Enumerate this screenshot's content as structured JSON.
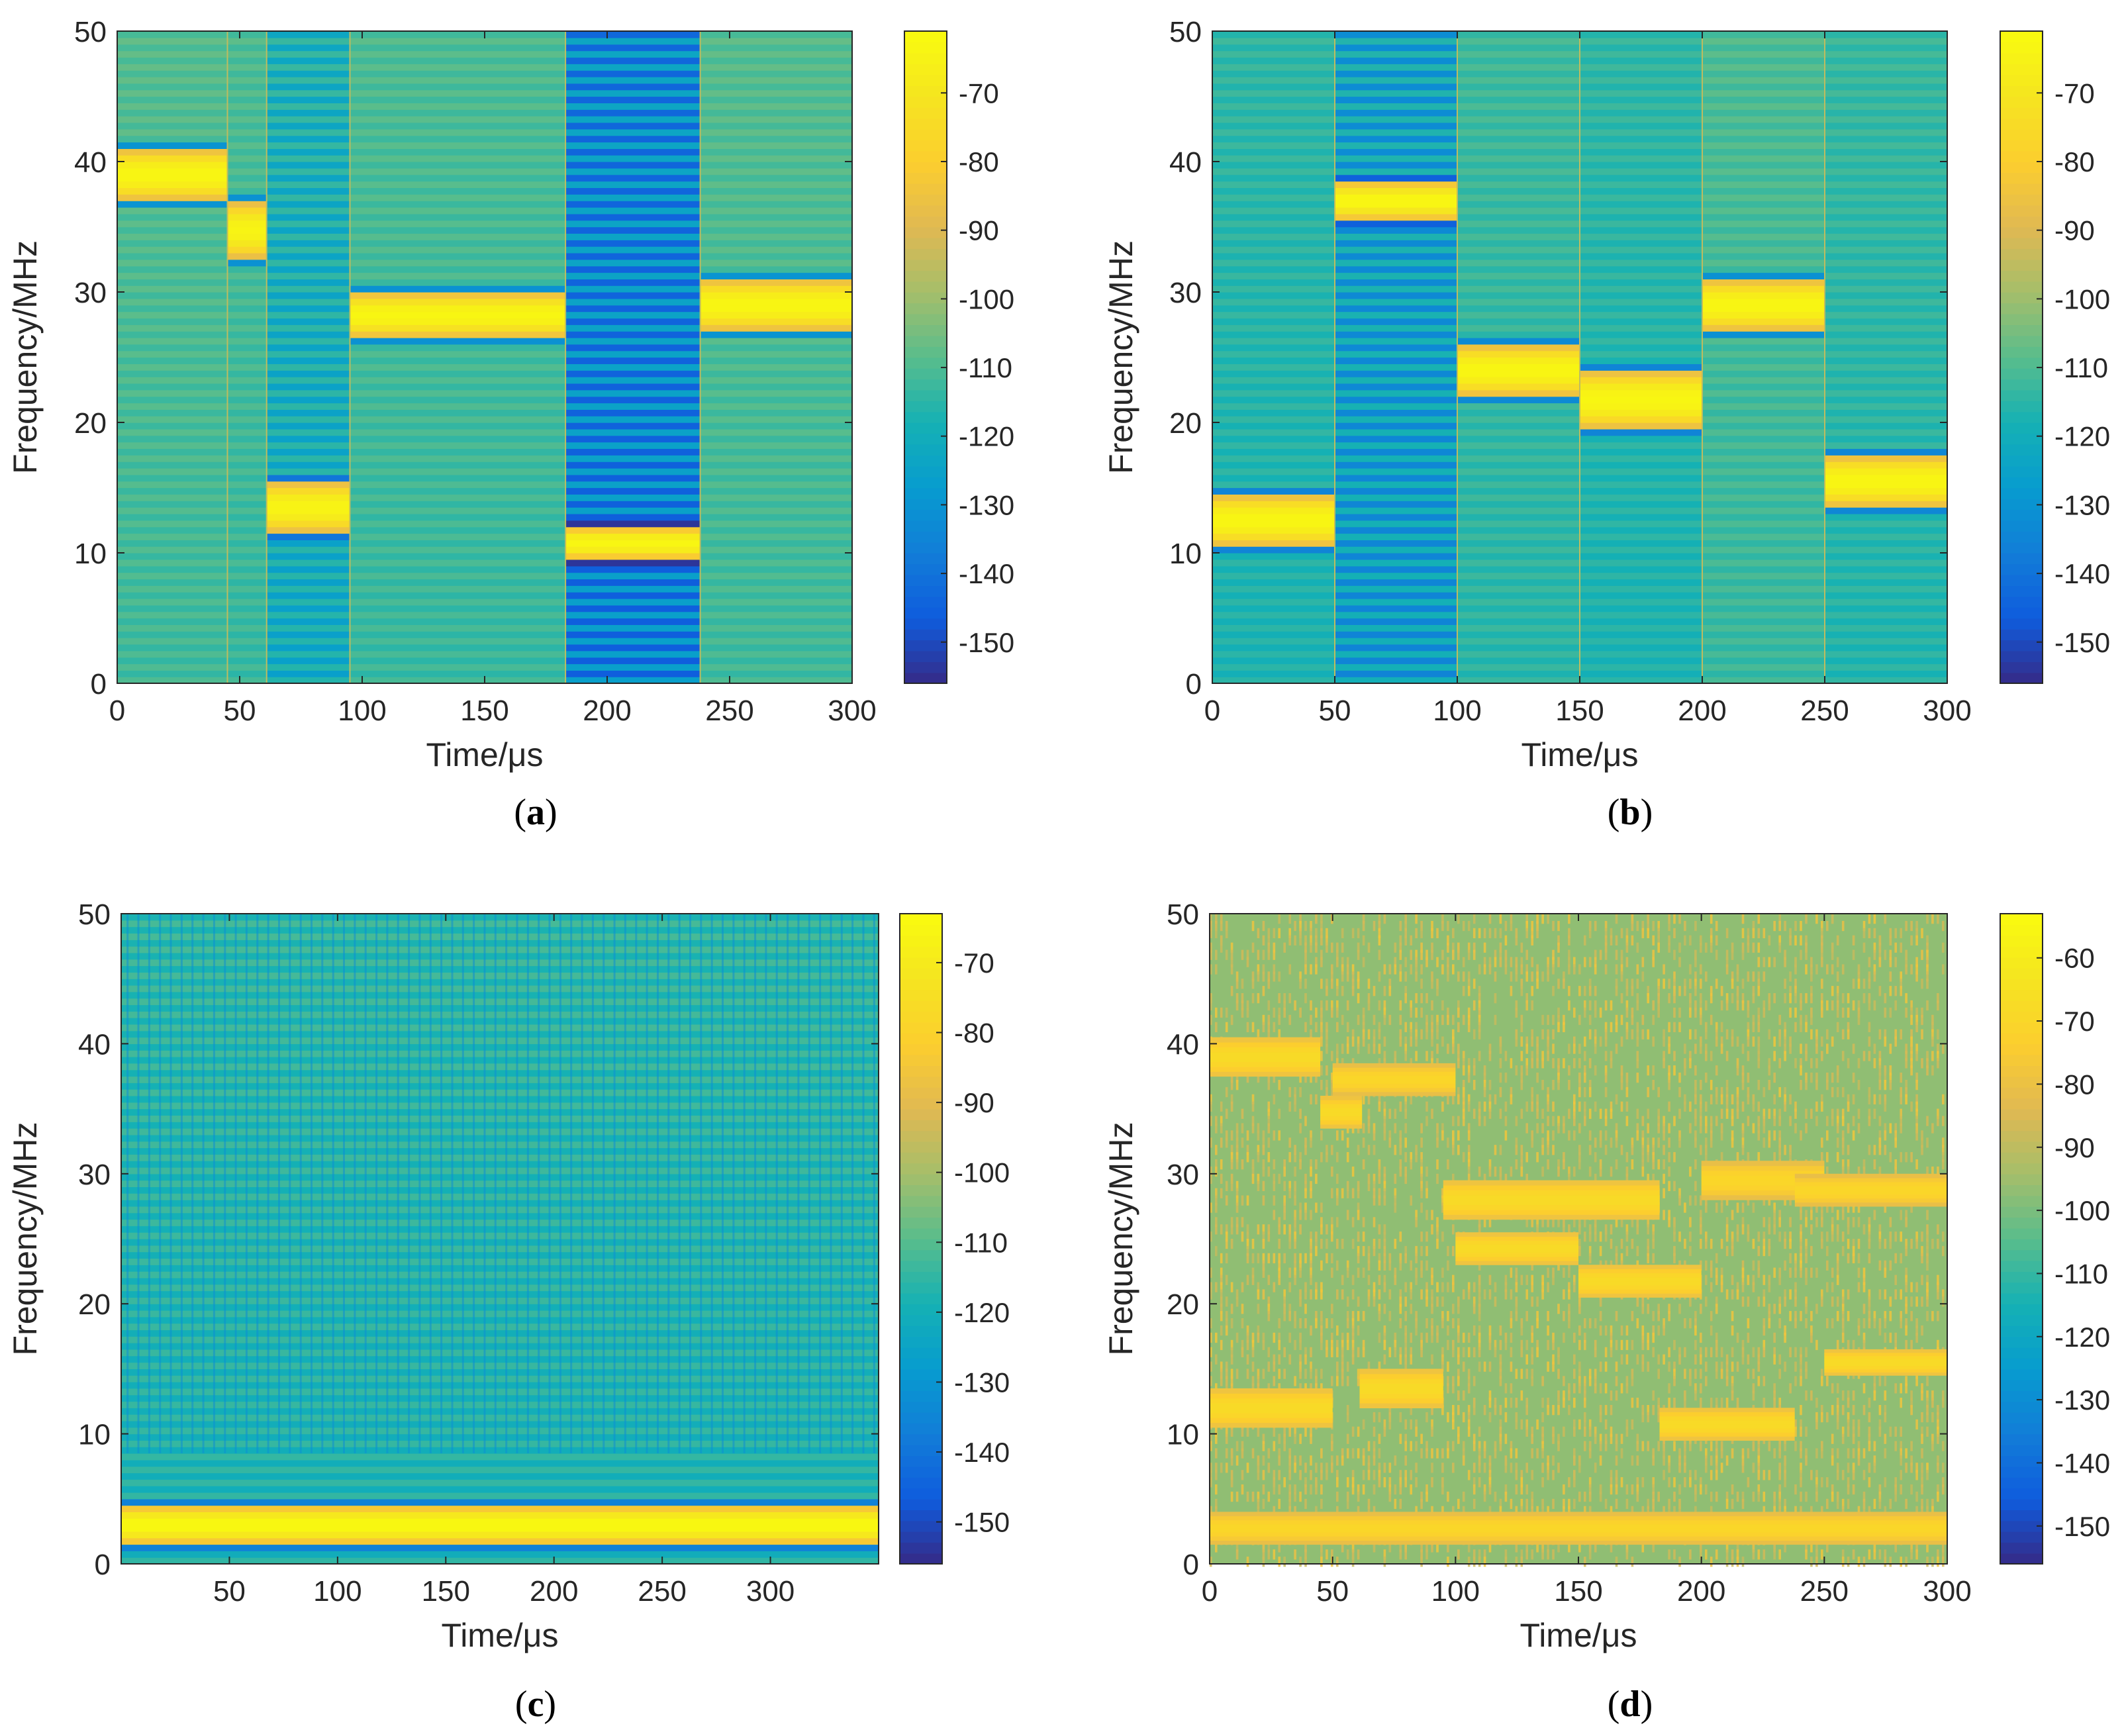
{
  "chart_data": [
    {
      "type": "heatmap",
      "panel_label": "(a)",
      "caption": {
        "open": "(",
        "letter": "a",
        "close": ")"
      },
      "xlabel": "Time/μs",
      "ylabel": "Frequency/MHz",
      "xlim": [
        0,
        300
      ],
      "ylim": [
        0,
        50
      ],
      "xticks": [
        0,
        50,
        100,
        150,
        200,
        250,
        300
      ],
      "yticks": [
        0,
        10,
        20,
        30,
        40,
        50
      ],
      "colorbar": {
        "range": [
          -156,
          -61
        ],
        "ticks": [
          -70,
          -80,
          -90,
          -100,
          -110,
          -120,
          -130,
          -140,
          -150
        ],
        "colormap": "parula"
      },
      "background_db": -112,
      "segments": [
        {
          "t0": 0,
          "t1": 45,
          "bg_db": -112,
          "f_low": 37,
          "f_high": 41,
          "peak_db": -63,
          "stripe": 0
        },
        {
          "t0": 45,
          "t1": 61,
          "bg_db": -113,
          "f_low": 32.5,
          "f_high": 37,
          "peak_db": -64,
          "stripe": 0
        },
        {
          "t0": 61,
          "t1": 95,
          "bg_db": -121,
          "f_low": 11.5,
          "f_high": 15.5,
          "peak_db": -64,
          "stripe": 0.5
        },
        {
          "t0": 95,
          "t1": 183,
          "bg_db": -113,
          "f_low": 26.5,
          "f_high": 30,
          "peak_db": -63,
          "stripe": 0
        },
        {
          "t0": 183,
          "t1": 238,
          "bg_db": -136,
          "f_low": 9.5,
          "f_high": 12,
          "peak_db": -63,
          "stripe": 1
        },
        {
          "t0": 238,
          "t1": 300,
          "bg_db": -112,
          "f_low": 27,
          "f_high": 31,
          "peak_db": -63,
          "stripe": 0
        }
      ]
    },
    {
      "type": "heatmap",
      "panel_label": "(b)",
      "caption": {
        "open": "(",
        "letter": "b",
        "close": ")"
      },
      "xlabel": "Time/μs",
      "ylabel": "Frequency/MHz",
      "xlim": [
        0,
        300
      ],
      "ylim": [
        0,
        50
      ],
      "xticks": [
        0,
        50,
        100,
        150,
        200,
        250,
        300
      ],
      "yticks": [
        0,
        10,
        20,
        30,
        40,
        50
      ],
      "colorbar": {
        "range": [
          -156,
          -61
        ],
        "ticks": [
          -70,
          -80,
          -90,
          -100,
          -110,
          -120,
          -130,
          -140,
          -150
        ],
        "colormap": "parula"
      },
      "background_db": -118,
      "segments": [
        {
          "t0": 0,
          "t1": 50,
          "bg_db": -117,
          "f_low": 10.5,
          "f_high": 14.5,
          "peak_db": -63,
          "stripe": 0
        },
        {
          "t0": 50,
          "t1": 100,
          "bg_db": -127,
          "f_low": 35.5,
          "f_high": 38.5,
          "peak_db": -63,
          "stripe": 0.8
        },
        {
          "t0": 100,
          "t1": 150,
          "bg_db": -115,
          "f_low": 22,
          "f_high": 26,
          "peak_db": -63,
          "stripe": 0
        },
        {
          "t0": 150,
          "t1": 200,
          "bg_db": -117,
          "f_low": 19.5,
          "f_high": 24,
          "peak_db": -63,
          "stripe": 0
        },
        {
          "t0": 200,
          "t1": 250,
          "bg_db": -113,
          "f_low": 27,
          "f_high": 31,
          "peak_db": -63,
          "stripe": 0
        },
        {
          "t0": 250,
          "t1": 300,
          "bg_db": -116,
          "f_low": 13.5,
          "f_high": 17.5,
          "peak_db": -63,
          "stripe": 0
        }
      ]
    },
    {
      "type": "heatmap",
      "panel_label": "(c)",
      "caption": {
        "open": "(",
        "letter": "c",
        "close": ")"
      },
      "xlabel": "Time/μs",
      "ylabel": "Frequency/MHz",
      "xlim": [
        0,
        350
      ],
      "ylim": [
        0,
        50
      ],
      "xticks": [
        50,
        100,
        150,
        200,
        250,
        300
      ],
      "yticks": [
        0,
        10,
        20,
        30,
        40,
        50
      ],
      "colorbar": {
        "range": [
          -156,
          -63
        ],
        "ticks": [
          -70,
          -80,
          -90,
          -100,
          -110,
          -120,
          -130,
          -140,
          -150
        ],
        "colormap": "parula"
      },
      "background_db": -118,
      "segments": [
        {
          "t0": 0,
          "t1": 350,
          "bg_db": -118,
          "f_low": 1.5,
          "f_high": 4.5,
          "peak_db": -64,
          "stripe": 0.3,
          "vertical_stripes": true
        }
      ]
    },
    {
      "type": "heatmap",
      "panel_label": "(d)",
      "caption": {
        "open": "(",
        "letter": "d",
        "close": ")"
      },
      "xlabel": "Time/μs",
      "ylabel": "Frequency/MHz",
      "xlim": [
        0,
        300
      ],
      "ylim": [
        0,
        50
      ],
      "xticks": [
        0,
        50,
        100,
        150,
        200,
        250,
        300
      ],
      "yticks": [
        0,
        10,
        20,
        30,
        40,
        50
      ],
      "colorbar": {
        "range": [
          -156,
          -53
        ],
        "ticks": [
          -60,
          -70,
          -80,
          -90,
          -100,
          -110,
          -120,
          -130,
          -140,
          -150
        ],
        "colormap": "parula"
      },
      "background_db": -97,
      "noise": true,
      "bursts": [
        {
          "t0": 0,
          "t1": 300,
          "f_low": 1.5,
          "f_high": 4,
          "peak_db": -70
        },
        {
          "t0": 0,
          "t1": 45,
          "f_low": 37.5,
          "f_high": 40.5,
          "peak_db": -68
        },
        {
          "t0": 45,
          "t1": 62,
          "f_low": 33.5,
          "f_high": 36,
          "peak_db": -68
        },
        {
          "t0": 50,
          "t1": 100,
          "f_low": 36,
          "f_high": 38.5,
          "peak_db": -70
        },
        {
          "t0": 0,
          "t1": 50,
          "f_low": 10.5,
          "f_high": 13.5,
          "peak_db": -68
        },
        {
          "t0": 61,
          "t1": 95,
          "f_low": 12,
          "f_high": 15,
          "peak_db": -68
        },
        {
          "t0": 95,
          "t1": 183,
          "f_low": 26.5,
          "f_high": 29.5,
          "peak_db": -68
        },
        {
          "t0": 100,
          "t1": 150,
          "f_low": 23,
          "f_high": 25.5,
          "peak_db": -68
        },
        {
          "t0": 150,
          "t1": 200,
          "f_low": 20.5,
          "f_high": 23,
          "peak_db": -68
        },
        {
          "t0": 183,
          "t1": 238,
          "f_low": 9.5,
          "f_high": 12,
          "peak_db": -68
        },
        {
          "t0": 200,
          "t1": 250,
          "f_low": 28,
          "f_high": 31,
          "peak_db": -70
        },
        {
          "t0": 238,
          "t1": 300,
          "f_low": 27.5,
          "f_high": 30,
          "peak_db": -70
        },
        {
          "t0": 250,
          "t1": 300,
          "f_low": 14.5,
          "f_high": 16.5,
          "peak_db": -68
        }
      ]
    }
  ]
}
